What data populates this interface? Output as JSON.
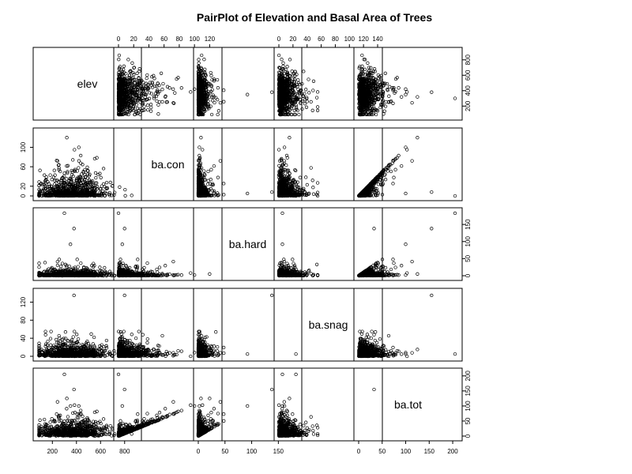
{
  "chart_data": {
    "type": "scatter",
    "title": "PairPlot of Elevation and Basal Area of Trees",
    "variables": [
      "elev",
      "ba.con",
      "ba.hard",
      "ba.snag",
      "ba.tot"
    ],
    "limits": {
      "elev": [
        80,
        900
      ],
      "ba.con": [
        0,
        130
      ],
      "ba.hard": [
        0,
        185
      ],
      "ba.snag": [
        0,
        140
      ],
      "ba.tot": [
        0,
        210
      ]
    },
    "ticks": {
      "elev": [
        200,
        400,
        600,
        800
      ],
      "ba.con": [
        0,
        20,
        40,
        60,
        80,
        100,
        120
      ],
      "ba.hard": [
        0,
        50,
        100,
        150
      ],
      "ba.snag": [
        0,
        20,
        40,
        60,
        80,
        100,
        120,
        140
      ],
      "ba.tot": [
        0,
        50,
        100,
        150,
        200
      ]
    },
    "axis_ticks": {
      "top": [
        "ba.con",
        "ba.snag"
      ],
      "bottom": [
        "elev",
        "ba.hard",
        "ba.tot"
      ],
      "left": [
        "ba.con",
        "ba.snag"
      ],
      "right": [
        "elev",
        "ba.hard",
        "ba.tot"
      ]
    },
    "right_ticks": {
      "elev": [
        200,
        400,
        600,
        800
      ],
      "ba.hard": [
        0,
        50,
        100,
        150
      ],
      "ba.tot": [
        0,
        50,
        100,
        150,
        200
      ]
    },
    "left_ticks": {
      "ba.con": [
        0,
        20,
        60,
        100
      ],
      "ba.snag": [
        0,
        40,
        80,
        120
      ]
    },
    "grid": false,
    "marker": "open-circle",
    "n_points": 760,
    "observations_sample": {
      "outliers": [
        {
          "elev": 320,
          "ba.con": 120,
          "ba.hard": 5,
          "ba.snag": 15,
          "ba.tot": 125
        },
        {
          "elev": 300,
          "ba.con": 0,
          "ba.hard": 183,
          "ba.snag": 5,
          "ba.tot": 205
        },
        {
          "elev": 380,
          "ba.con": 8,
          "ba.hard": 138,
          "ba.snag": 135,
          "ba.tot": 155
        },
        {
          "elev": 350,
          "ba.con": 5,
          "ba.hard": 92,
          "ba.snag": 5,
          "ba.tot": 100
        },
        {
          "elev": 420,
          "ba.con": 100,
          "ba.hard": 2,
          "ba.snag": 8,
          "ba.tot": 100
        },
        {
          "elev": 650,
          "ba.con": 15,
          "ba.hard": 0,
          "ba.snag": 35,
          "ba.tot": 35
        }
      ]
    }
  }
}
